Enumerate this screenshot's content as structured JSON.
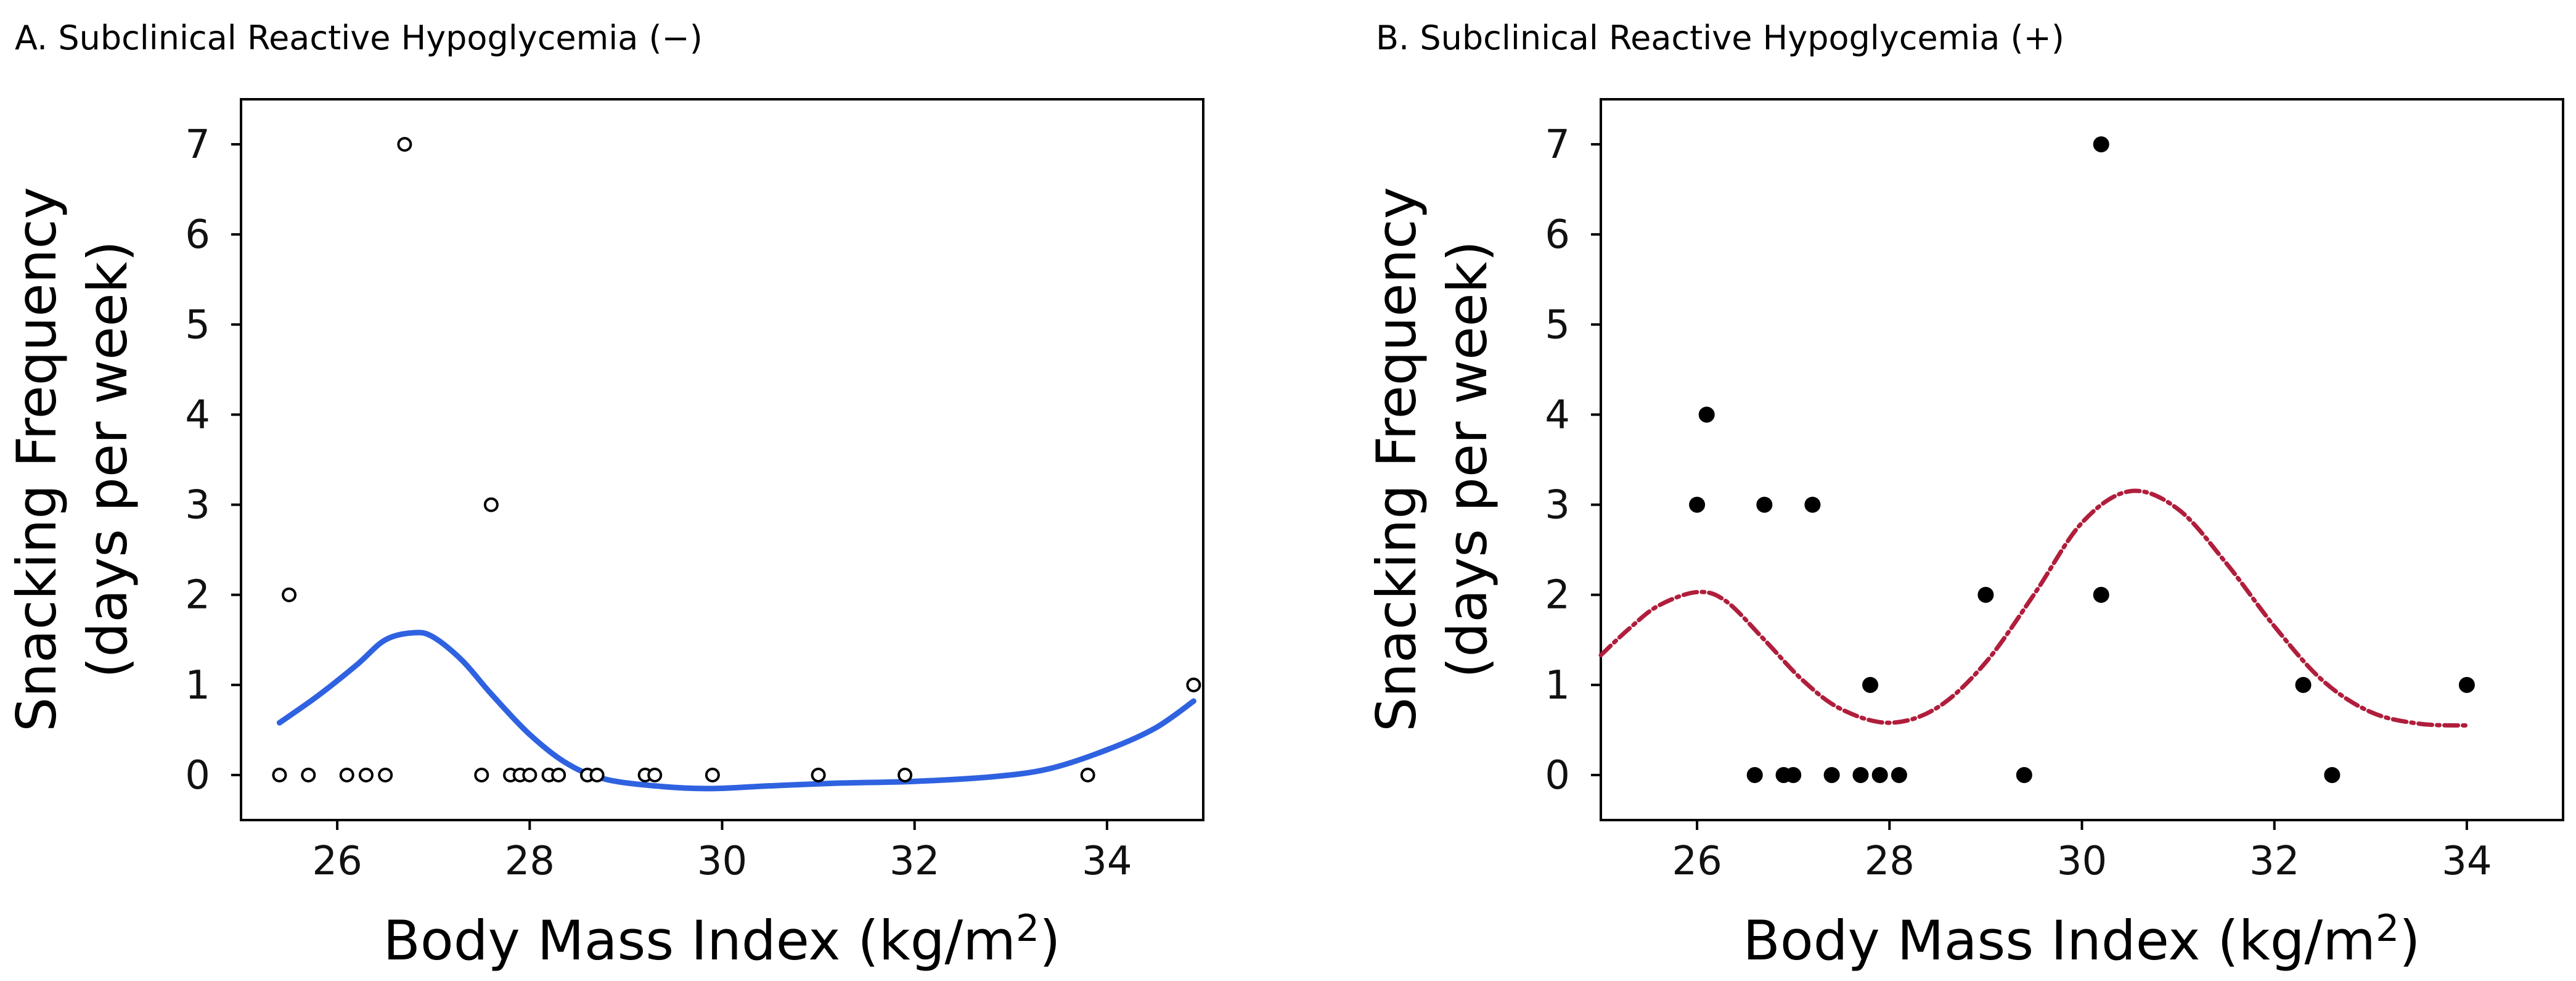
{
  "chart_data": [
    {
      "type": "scatter",
      "title": "A. Subclinical Reactive Hypoglycemia (−)",
      "xlabel_prefix": "Body Mass Index (kg/m",
      "xlabel_sup": "2",
      "xlabel_suffix": ")",
      "ylabel_line1": "Snacking Frequency",
      "ylabel_line2": "(days per week)",
      "xlim": [
        25.0,
        35.0
      ],
      "ylim": [
        -0.5,
        7.5
      ],
      "xticks": [
        26,
        28,
        30,
        32,
        34
      ],
      "yticks": [
        0,
        1,
        2,
        3,
        4,
        5,
        6,
        7
      ],
      "marker": "open-circle",
      "curve_color": "#2f62e0",
      "curve_style": "solid",
      "points": [
        {
          "x": 25.4,
          "y": 0
        },
        {
          "x": 25.5,
          "y": 2
        },
        {
          "x": 25.7,
          "y": 0
        },
        {
          "x": 26.1,
          "y": 0
        },
        {
          "x": 26.3,
          "y": 0
        },
        {
          "x": 26.5,
          "y": 0
        },
        {
          "x": 26.7,
          "y": 7
        },
        {
          "x": 27.5,
          "y": 0
        },
        {
          "x": 27.6,
          "y": 3
        },
        {
          "x": 27.8,
          "y": 0
        },
        {
          "x": 27.9,
          "y": 0
        },
        {
          "x": 28.0,
          "y": 0
        },
        {
          "x": 28.2,
          "y": 0
        },
        {
          "x": 28.3,
          "y": 0
        },
        {
          "x": 28.6,
          "y": 0
        },
        {
          "x": 28.7,
          "y": 0
        },
        {
          "x": 29.2,
          "y": 0
        },
        {
          "x": 29.3,
          "y": 0
        },
        {
          "x": 29.9,
          "y": 0
        },
        {
          "x": 31.0,
          "y": 0
        },
        {
          "x": 31.9,
          "y": 0
        },
        {
          "x": 33.8,
          "y": 0
        },
        {
          "x": 34.9,
          "y": 1
        }
      ],
      "smooth_curve": [
        {
          "x": 25.4,
          "y": 0.58
        },
        {
          "x": 25.8,
          "y": 0.88
        },
        {
          "x": 26.2,
          "y": 1.22
        },
        {
          "x": 26.5,
          "y": 1.5
        },
        {
          "x": 26.8,
          "y": 1.58
        },
        {
          "x": 27.0,
          "y": 1.53
        },
        {
          "x": 27.3,
          "y": 1.27
        },
        {
          "x": 27.6,
          "y": 0.9
        },
        {
          "x": 28.0,
          "y": 0.45
        },
        {
          "x": 28.4,
          "y": 0.12
        },
        {
          "x": 28.8,
          "y": -0.05
        },
        {
          "x": 29.4,
          "y": -0.13
        },
        {
          "x": 29.9,
          "y": -0.15
        },
        {
          "x": 30.5,
          "y": -0.12
        },
        {
          "x": 31.2,
          "y": -0.09
        },
        {
          "x": 32.0,
          "y": -0.07
        },
        {
          "x": 32.8,
          "y": -0.02
        },
        {
          "x": 33.4,
          "y": 0.07
        },
        {
          "x": 34.0,
          "y": 0.28
        },
        {
          "x": 34.5,
          "y": 0.52
        },
        {
          "x": 34.9,
          "y": 0.82
        }
      ]
    },
    {
      "type": "scatter",
      "title": "B. Subclinical Reactive Hypoglycemia (+)",
      "xlabel_prefix": "Body Mass Index (kg/m",
      "xlabel_sup": "2",
      "xlabel_suffix": ")",
      "ylabel_line1": "Snacking Frequency",
      "ylabel_line2": "(days per week)",
      "xlim": [
        25.0,
        35.0
      ],
      "ylim": [
        -0.5,
        7.5
      ],
      "xticks": [
        26,
        28,
        30,
        32,
        34
      ],
      "yticks": [
        0,
        1,
        2,
        3,
        4,
        5,
        6,
        7
      ],
      "marker": "filled-circle",
      "curve_color": "#b01e3c",
      "curve_style": "dashdot",
      "points": [
        {
          "x": 26.0,
          "y": 3
        },
        {
          "x": 26.1,
          "y": 4
        },
        {
          "x": 26.6,
          "y": 0
        },
        {
          "x": 26.7,
          "y": 3
        },
        {
          "x": 26.9,
          "y": 0
        },
        {
          "x": 27.0,
          "y": 0
        },
        {
          "x": 27.2,
          "y": 3
        },
        {
          "x": 27.4,
          "y": 0
        },
        {
          "x": 27.7,
          "y": 0
        },
        {
          "x": 27.8,
          "y": 1
        },
        {
          "x": 27.9,
          "y": 0
        },
        {
          "x": 28.1,
          "y": 0
        },
        {
          "x": 29.0,
          "y": 2
        },
        {
          "x": 29.4,
          "y": 0
        },
        {
          "x": 30.2,
          "y": 7
        },
        {
          "x": 30.2,
          "y": 2
        },
        {
          "x": 32.3,
          "y": 1
        },
        {
          "x": 32.6,
          "y": 0
        },
        {
          "x": 34.0,
          "y": 1
        }
      ],
      "smooth_curve": [
        {
          "x": 25.0,
          "y": 1.33
        },
        {
          "x": 25.3,
          "y": 1.63
        },
        {
          "x": 25.6,
          "y": 1.88
        },
        {
          "x": 26.0,
          "y": 2.03
        },
        {
          "x": 26.3,
          "y": 1.93
        },
        {
          "x": 26.7,
          "y": 1.5
        },
        {
          "x": 27.1,
          "y": 1.05
        },
        {
          "x": 27.5,
          "y": 0.73
        },
        {
          "x": 28.0,
          "y": 0.58
        },
        {
          "x": 28.5,
          "y": 0.75
        },
        {
          "x": 29.0,
          "y": 1.25
        },
        {
          "x": 29.5,
          "y": 2.0
        },
        {
          "x": 30.0,
          "y": 2.8
        },
        {
          "x": 30.5,
          "y": 3.15
        },
        {
          "x": 31.0,
          "y": 2.95
        },
        {
          "x": 31.5,
          "y": 2.35
        },
        {
          "x": 32.0,
          "y": 1.65
        },
        {
          "x": 32.5,
          "y": 1.05
        },
        {
          "x": 33.0,
          "y": 0.7
        },
        {
          "x": 33.5,
          "y": 0.57
        },
        {
          "x": 34.0,
          "y": 0.55
        }
      ]
    }
  ]
}
